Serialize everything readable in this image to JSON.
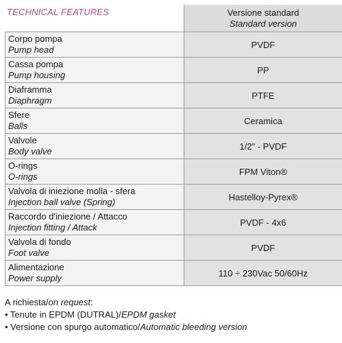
{
  "header": {
    "title": "TECHNICAL FEATURES",
    "version_it": "Versione standard",
    "version_en": "Standard version"
  },
  "rows": [
    {
      "it": "Corpo pompa",
      "en": "Pump head",
      "value": "PVDF"
    },
    {
      "it": "Cassa pompa",
      "en": "Pump housing",
      "value": "PP"
    },
    {
      "it": "Diaframma",
      "en": "Diaphragm",
      "value": "PTFE"
    },
    {
      "it": "Sfere",
      "en": "Balls",
      "value": "Ceramica"
    },
    {
      "it": "Valvole",
      "en": "Body valve",
      "value": "1/2\" - PVDF"
    },
    {
      "it": "O-rings",
      "en": "O-rings",
      "value": "FPM Viton®"
    },
    {
      "it": "Valvola di iniezione molla - sfera",
      "en": "Injection ball valve (Spring)",
      "value": "Hastelloy-Pyrex®"
    },
    {
      "it": "Raccordo d'iniezione / Attacco",
      "en": "Injection fitting / Attack",
      "value": "PVDF - 4x6"
    },
    {
      "it": "Valvola di fondo",
      "en": "Foot valve",
      "value": "PVDF"
    },
    {
      "it": "Alimentazione",
      "en": "Power supply",
      "value": "110 ÷ 230Vac 50/60Hz"
    }
  ],
  "notes": {
    "request_it": "A richiesta/",
    "request_en": "on request",
    "request_colon": ":",
    "item1_it": "• Tenute in EPDM (DUTRAL)/",
    "item1_en": "EPDM gasket",
    "item2_it": "• Versione con spurgo automatico/",
    "item2_en": "Automatic bleeding version"
  },
  "colors": {
    "title": "#b3479a",
    "header_bg": "#dcdcdc",
    "label_bg": "#f3f3f3",
    "value_bg": "#e2e2e2",
    "border": "#9a9a9a"
  }
}
